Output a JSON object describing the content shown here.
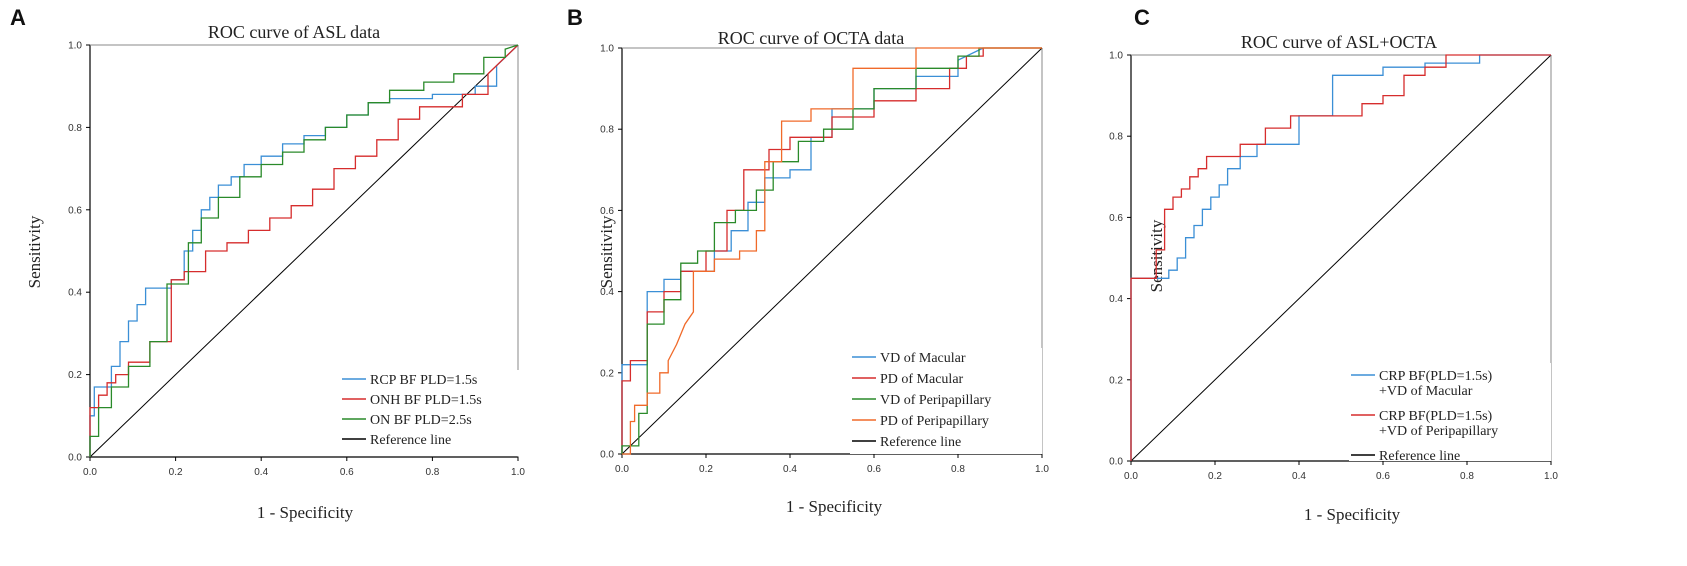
{
  "chart_data": [
    {
      "type": "line",
      "panel": "A",
      "title": "ROC curve of ASL data",
      "xlabel": "1 - Specificity",
      "ylabel": "Sensitivity",
      "xlim": [
        0,
        1
      ],
      "ylim": [
        0,
        1
      ],
      "ticks": [
        "0.0",
        "0.2",
        "0.4",
        "0.6",
        "0.8",
        "1.0"
      ],
      "series": [
        {
          "name": "RCP BF PLD=1.5s",
          "color": "#3b8fd6",
          "x": [
            0.0,
            0.0,
            0.01,
            0.01,
            0.05,
            0.05,
            0.07,
            0.07,
            0.09,
            0.09,
            0.11,
            0.11,
            0.13,
            0.13,
            0.19,
            0.19,
            0.22,
            0.22,
            0.24,
            0.24,
            0.26,
            0.26,
            0.28,
            0.28,
            0.3,
            0.3,
            0.33,
            0.33,
            0.36,
            0.36,
            0.4,
            0.4,
            0.45,
            0.45,
            0.5,
            0.5,
            0.55,
            0.55,
            0.6,
            0.6,
            0.65,
            0.65,
            0.7,
            0.7,
            0.8,
            0.8,
            0.9,
            0.9,
            0.95,
            0.95,
            1.0
          ],
          "y": [
            0.0,
            0.1,
            0.1,
            0.17,
            0.17,
            0.22,
            0.22,
            0.28,
            0.28,
            0.33,
            0.33,
            0.37,
            0.37,
            0.41,
            0.41,
            0.43,
            0.43,
            0.5,
            0.5,
            0.55,
            0.55,
            0.6,
            0.6,
            0.63,
            0.63,
            0.66,
            0.66,
            0.68,
            0.68,
            0.71,
            0.71,
            0.73,
            0.73,
            0.76,
            0.76,
            0.78,
            0.78,
            0.8,
            0.8,
            0.83,
            0.83,
            0.86,
            0.86,
            0.87,
            0.87,
            0.88,
            0.88,
            0.9,
            0.9,
            0.95,
            1.0
          ]
        },
        {
          "name": "ONH BF PLD=1.5s",
          "color": "#d62d2d",
          "x": [
            0.0,
            0.0,
            0.02,
            0.02,
            0.04,
            0.04,
            0.06,
            0.06,
            0.09,
            0.09,
            0.14,
            0.14,
            0.19,
            0.19,
            0.22,
            0.22,
            0.27,
            0.27,
            0.32,
            0.32,
            0.37,
            0.37,
            0.42,
            0.42,
            0.47,
            0.47,
            0.52,
            0.52,
            0.57,
            0.57,
            0.62,
            0.62,
            0.67,
            0.67,
            0.72,
            0.72,
            0.77,
            0.77,
            0.87,
            0.87,
            0.93,
            0.93,
            1.0
          ],
          "y": [
            0.0,
            0.12,
            0.12,
            0.15,
            0.15,
            0.18,
            0.18,
            0.2,
            0.2,
            0.23,
            0.23,
            0.28,
            0.28,
            0.43,
            0.43,
            0.45,
            0.45,
            0.5,
            0.5,
            0.52,
            0.52,
            0.55,
            0.55,
            0.58,
            0.58,
            0.61,
            0.61,
            0.65,
            0.65,
            0.7,
            0.7,
            0.73,
            0.73,
            0.77,
            0.77,
            0.82,
            0.82,
            0.85,
            0.85,
            0.88,
            0.88,
            0.93,
            1.0
          ]
        },
        {
          "name": "ON BF PLD=2.5s",
          "color": "#2a8a2a",
          "x": [
            0.0,
            0.0,
            0.02,
            0.02,
            0.05,
            0.05,
            0.09,
            0.09,
            0.14,
            0.14,
            0.18,
            0.18,
            0.23,
            0.23,
            0.26,
            0.26,
            0.3,
            0.3,
            0.35,
            0.35,
            0.4,
            0.4,
            0.45,
            0.45,
            0.5,
            0.5,
            0.55,
            0.55,
            0.6,
            0.6,
            0.65,
            0.65,
            0.7,
            0.7,
            0.78,
            0.78,
            0.85,
            0.85,
            0.92,
            0.92,
            0.97,
            0.97,
            1.0
          ],
          "y": [
            0.0,
            0.05,
            0.05,
            0.12,
            0.12,
            0.17,
            0.17,
            0.22,
            0.22,
            0.28,
            0.28,
            0.42,
            0.42,
            0.52,
            0.52,
            0.58,
            0.58,
            0.63,
            0.63,
            0.68,
            0.68,
            0.71,
            0.71,
            0.74,
            0.74,
            0.77,
            0.77,
            0.8,
            0.8,
            0.83,
            0.83,
            0.86,
            0.86,
            0.89,
            0.89,
            0.91,
            0.91,
            0.93,
            0.93,
            0.97,
            0.97,
            0.99,
            1.0
          ]
        },
        {
          "name": "Reference line",
          "color": "#000000",
          "x": [
            0,
            1
          ],
          "y": [
            0,
            1
          ]
        }
      ]
    },
    {
      "type": "line",
      "panel": "B",
      "title": "ROC curve of OCTA data",
      "xlabel": "1 - Specificity",
      "ylabel": "Sensitivity",
      "xlim": [
        0,
        1
      ],
      "ylim": [
        0,
        1
      ],
      "ticks": [
        "0.0",
        "0.2",
        "0.4",
        "0.6",
        "0.8",
        "1.0"
      ],
      "series": [
        {
          "name": "VD of Macular",
          "color": "#3b8fd6",
          "x": [
            0.0,
            0.0,
            0.06,
            0.06,
            0.1,
            0.1,
            0.14,
            0.14,
            0.22,
            0.22,
            0.26,
            0.26,
            0.3,
            0.3,
            0.34,
            0.34,
            0.4,
            0.4,
            0.45,
            0.45,
            0.5,
            0.5,
            0.6,
            0.6,
            0.7,
            0.7,
            0.8,
            0.8,
            0.86
          ],
          "y": [
            0.0,
            0.22,
            0.22,
            0.4,
            0.4,
            0.43,
            0.43,
            0.45,
            0.45,
            0.5,
            0.5,
            0.55,
            0.55,
            0.62,
            0.62,
            0.68,
            0.68,
            0.7,
            0.7,
            0.78,
            0.78,
            0.85,
            0.85,
            0.9,
            0.9,
            0.93,
            0.93,
            0.97,
            1.0
          ]
        },
        {
          "name": "PD of Macular",
          "color": "#d62d2d",
          "x": [
            0.0,
            0.0,
            0.02,
            0.02,
            0.06,
            0.06,
            0.1,
            0.1,
            0.14,
            0.14,
            0.2,
            0.2,
            0.25,
            0.25,
            0.29,
            0.29,
            0.35,
            0.35,
            0.4,
            0.4,
            0.5,
            0.5,
            0.6,
            0.6,
            0.7,
            0.7,
            0.78,
            0.78,
            0.82,
            0.82,
            0.86,
            0.86,
            1.0
          ],
          "y": [
            0.0,
            0.18,
            0.18,
            0.23,
            0.23,
            0.35,
            0.35,
            0.4,
            0.4,
            0.45,
            0.45,
            0.5,
            0.5,
            0.6,
            0.6,
            0.7,
            0.7,
            0.75,
            0.75,
            0.78,
            0.78,
            0.83,
            0.83,
            0.87,
            0.87,
            0.9,
            0.9,
            0.95,
            0.95,
            0.98,
            0.98,
            1.0,
            1.0
          ]
        },
        {
          "name": "VD of Peripapillary",
          "color": "#2a8a2a",
          "x": [
            0.0,
            0.0,
            0.04,
            0.04,
            0.06,
            0.06,
            0.1,
            0.1,
            0.14,
            0.14,
            0.18,
            0.18,
            0.22,
            0.22,
            0.27,
            0.27,
            0.32,
            0.32,
            0.36,
            0.36,
            0.42,
            0.42,
            0.48,
            0.48,
            0.55,
            0.55,
            0.6,
            0.6,
            0.7,
            0.7,
            0.8,
            0.8,
            0.85,
            0.85,
            1.0
          ],
          "y": [
            0.0,
            0.02,
            0.02,
            0.1,
            0.1,
            0.32,
            0.32,
            0.38,
            0.38,
            0.47,
            0.47,
            0.5,
            0.5,
            0.57,
            0.57,
            0.6,
            0.6,
            0.65,
            0.65,
            0.72,
            0.72,
            0.77,
            0.77,
            0.8,
            0.8,
            0.85,
            0.85,
            0.9,
            0.9,
            0.95,
            0.95,
            0.98,
            0.98,
            1.0,
            1.0
          ]
        },
        {
          "name": "PD of Peripapillary",
          "color": "#f06a2a",
          "x": [
            0.0,
            0.02,
            0.02,
            0.03,
            0.03,
            0.06,
            0.06,
            0.09,
            0.09,
            0.11,
            0.11,
            0.13,
            0.15,
            0.17,
            0.17,
            0.22,
            0.22,
            0.28,
            0.28,
            0.32,
            0.32,
            0.34,
            0.34,
            0.38,
            0.38,
            0.45,
            0.45,
            0.55,
            0.55,
            0.6,
            0.6,
            0.7,
            0.7,
            0.8,
            0.8,
            1.0
          ],
          "y": [
            0.0,
            0.0,
            0.08,
            0.08,
            0.12,
            0.12,
            0.15,
            0.15,
            0.2,
            0.2,
            0.23,
            0.27,
            0.32,
            0.35,
            0.45,
            0.45,
            0.48,
            0.48,
            0.5,
            0.5,
            0.55,
            0.55,
            0.72,
            0.72,
            0.82,
            0.82,
            0.85,
            0.85,
            0.95,
            0.95,
            0.95,
            0.95,
            1.0,
            1.0,
            1.0,
            1.0
          ]
        },
        {
          "name": "Reference line",
          "color": "#000000",
          "x": [
            0,
            1
          ],
          "y": [
            0,
            1
          ]
        }
      ]
    },
    {
      "type": "line",
      "panel": "C",
      "title": "ROC curve of ASL+OCTA",
      "xlabel": "1 - Specificity",
      "ylabel": "Sensitivity",
      "xlim": [
        0,
        1
      ],
      "ylim": [
        0,
        1
      ],
      "ticks": [
        "0.0",
        "0.2",
        "0.4",
        "0.6",
        "0.8",
        "1.0"
      ],
      "series": [
        {
          "name": "CRP BF(PLD=1.5s)\n+VD of Macular",
          "color": "#3b8fd6",
          "x": [
            0.0,
            0.0,
            0.09,
            0.09,
            0.11,
            0.11,
            0.13,
            0.13,
            0.15,
            0.15,
            0.17,
            0.17,
            0.19,
            0.19,
            0.21,
            0.21,
            0.23,
            0.23,
            0.26,
            0.26,
            0.3,
            0.3,
            0.4,
            0.4,
            0.48,
            0.48,
            0.6,
            0.6,
            0.7,
            0.7,
            0.83,
            0.83,
            1.0
          ],
          "y": [
            0.0,
            0.45,
            0.45,
            0.47,
            0.47,
            0.5,
            0.5,
            0.55,
            0.55,
            0.58,
            0.58,
            0.62,
            0.62,
            0.65,
            0.65,
            0.68,
            0.68,
            0.72,
            0.72,
            0.75,
            0.75,
            0.78,
            0.78,
            0.85,
            0.85,
            0.95,
            0.95,
            0.97,
            0.97,
            0.98,
            0.98,
            1.0,
            1.0
          ]
        },
        {
          "name": "CRP BF(PLD=1.5s)\n+VD of Peripapillary",
          "color": "#d62d2d",
          "x": [
            0.0,
            0.0,
            0.06,
            0.06,
            0.08,
            0.08,
            0.1,
            0.1,
            0.12,
            0.12,
            0.14,
            0.14,
            0.16,
            0.16,
            0.18,
            0.18,
            0.26,
            0.26,
            0.32,
            0.32,
            0.38,
            0.38,
            0.45,
            0.45,
            0.55,
            0.55,
            0.6,
            0.6,
            0.65,
            0.65,
            0.7,
            0.7,
            0.75,
            0.75,
            1.0
          ],
          "y": [
            0.0,
            0.45,
            0.45,
            0.52,
            0.52,
            0.62,
            0.62,
            0.65,
            0.65,
            0.67,
            0.67,
            0.7,
            0.7,
            0.72,
            0.72,
            0.75,
            0.75,
            0.78,
            0.78,
            0.82,
            0.82,
            0.85,
            0.85,
            0.85,
            0.85,
            0.88,
            0.88,
            0.9,
            0.9,
            0.95,
            0.95,
            0.97,
            0.97,
            1.0,
            1.0
          ]
        },
        {
          "name": "Reference line",
          "color": "#000000",
          "x": [
            0,
            1
          ],
          "y": [
            0,
            1
          ]
        }
      ]
    }
  ]
}
